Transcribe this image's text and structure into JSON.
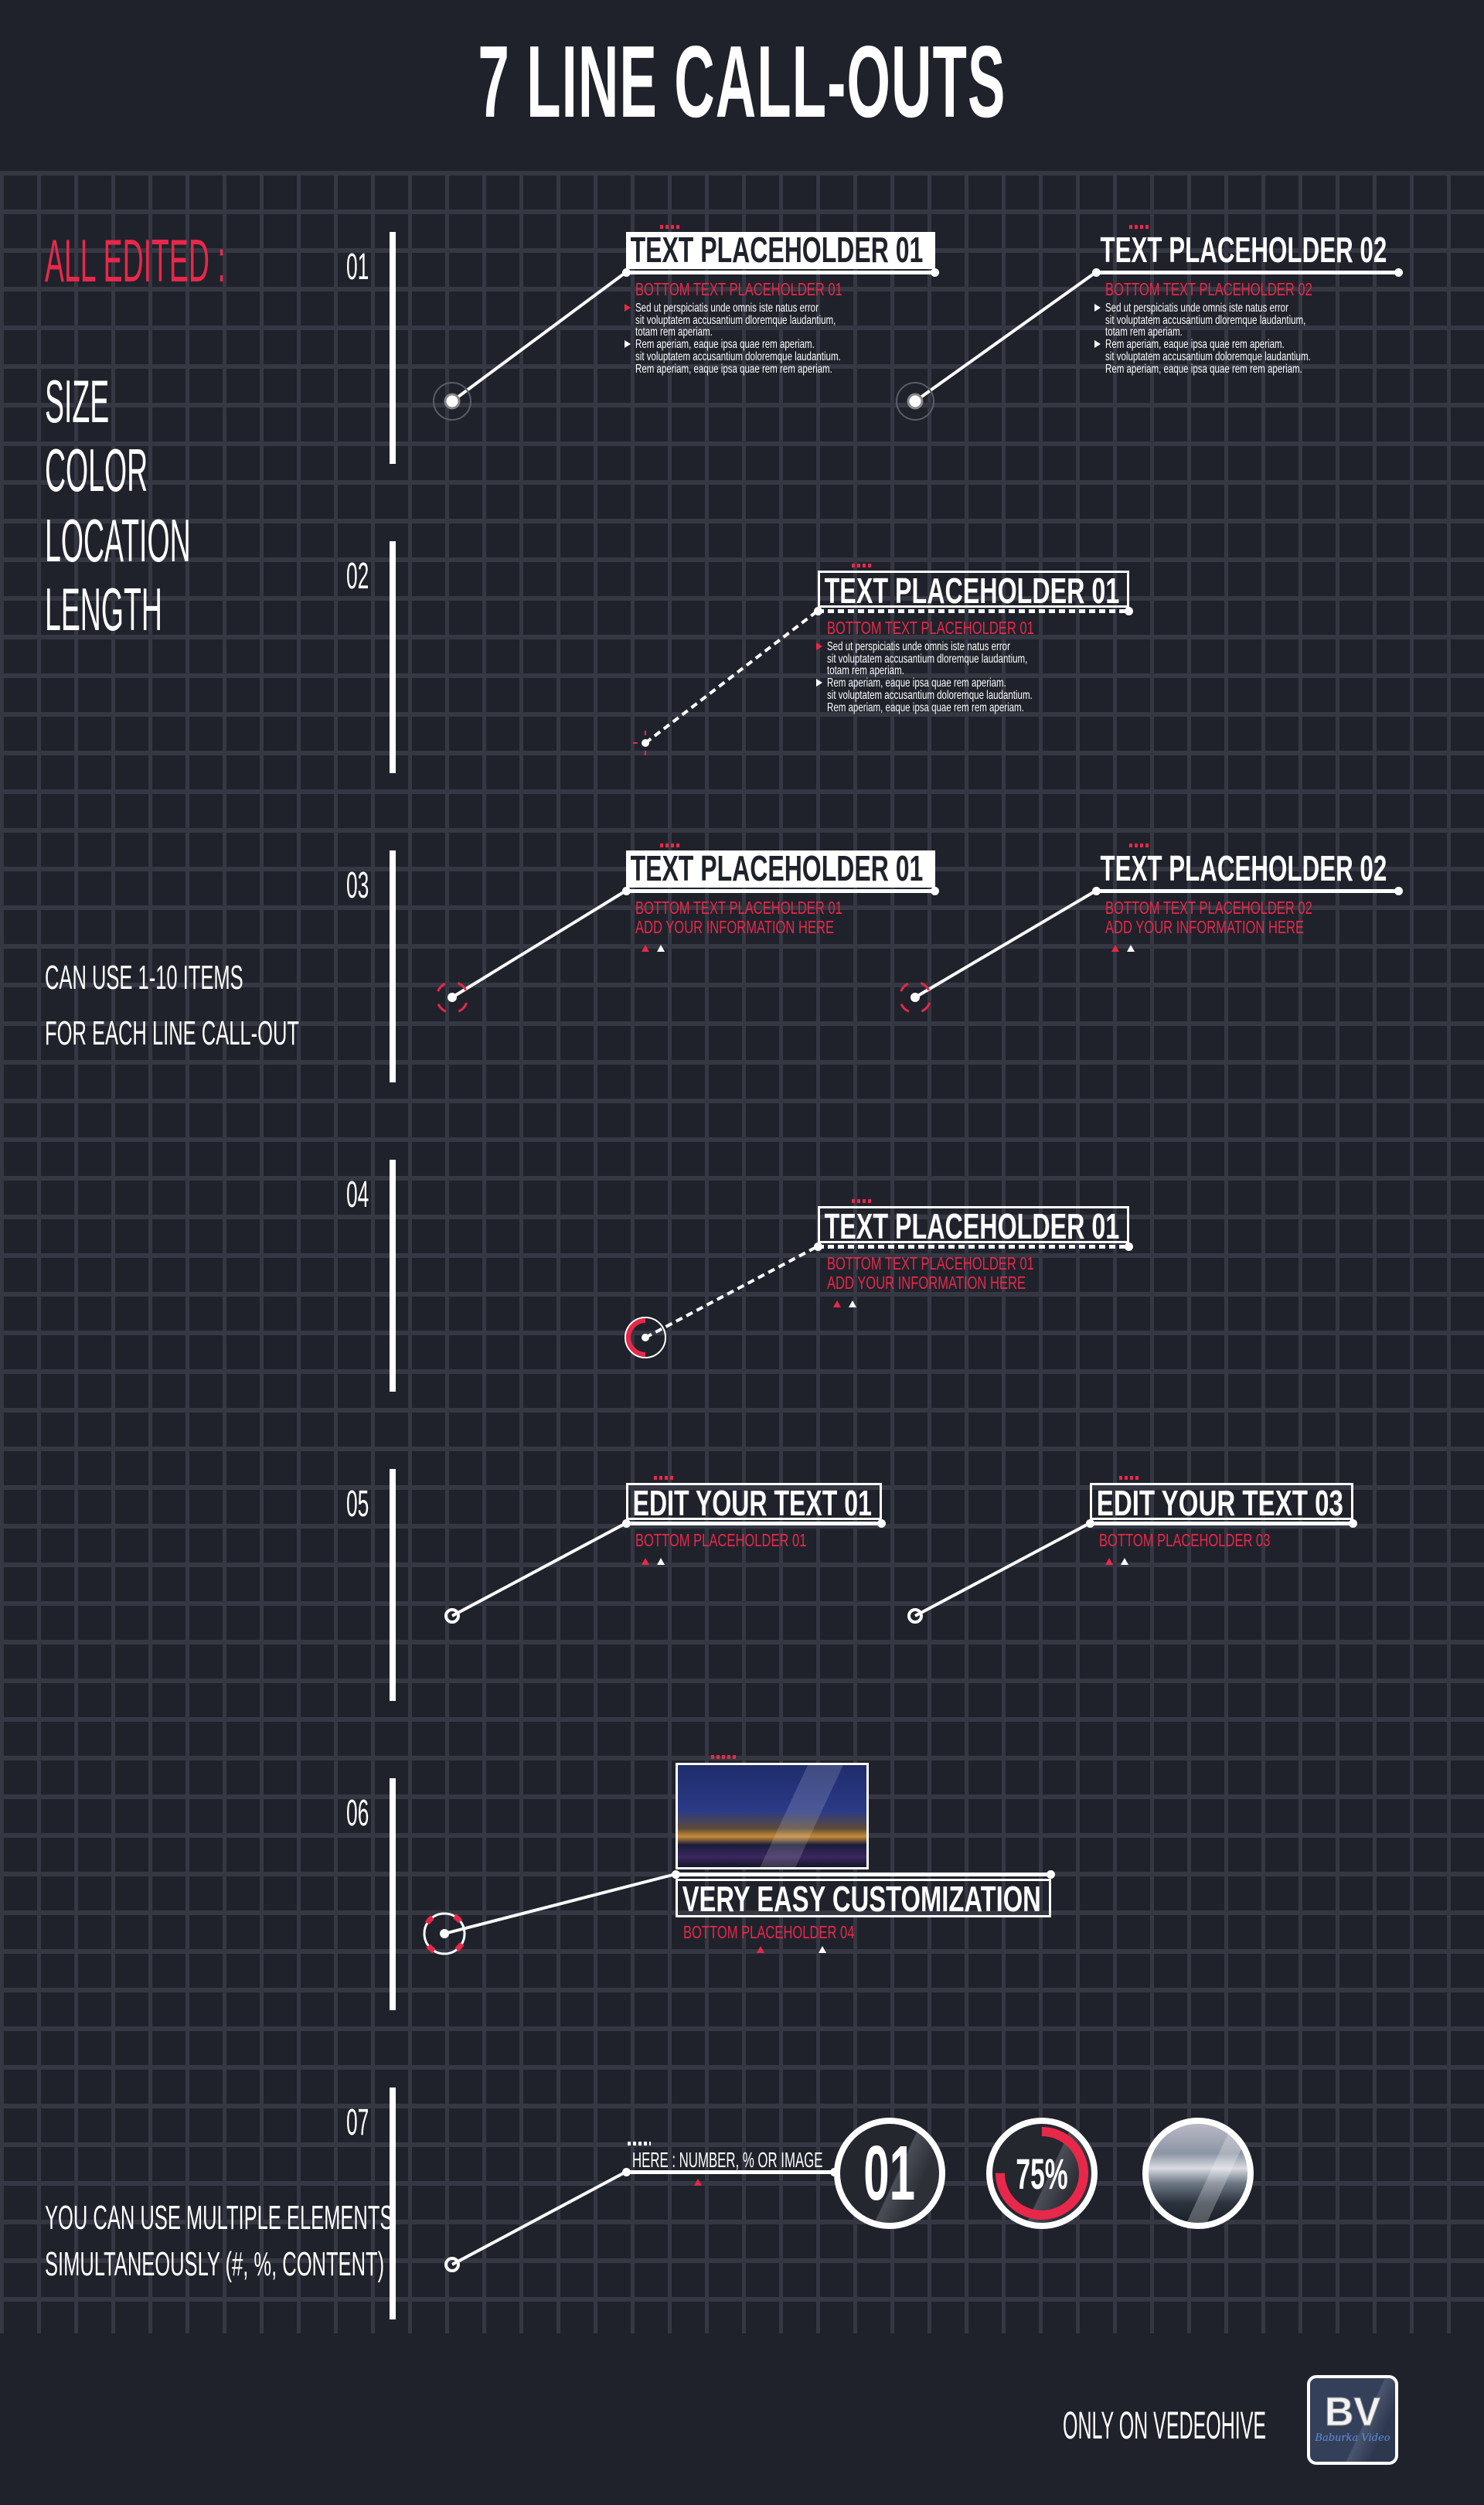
{
  "title": "7 LINE CALL-OUTS",
  "features": {
    "heading": "ALL EDITED :",
    "items": [
      "SIZE",
      "COLOR",
      "LOCATION",
      "LENGTH"
    ]
  },
  "note_items": [
    "CAN USE 1-10 ITEMS",
    "FOR EACH LINE CALL-OUT"
  ],
  "note_elements": [
    "YOU CAN USE MULTIPLE ELEMENTS",
    "SIMULTANEOUSLY (#, %, CONTENT)"
  ],
  "sections": [
    {
      "number": "01",
      "callouts": [
        {
          "heading": "TEXT PLACEHOLDER 01",
          "subtitle": [
            "BOTTOM TEXT PLACEHOLDER 01"
          ],
          "body": [
            "Sed ut perspiciatis unde omnis iste natus error",
            "sit voluptatem accusantium dloremque laudantium,",
            "totam rem aperiam.",
            "Rem aperiam, eaque ipsa quae rem aperiam.",
            "sit voluptatem accusantium doloremque laudantium.",
            "Rem aperiam, eaque ipsa quae rem  rem aperiam."
          ]
        },
        {
          "heading": "TEXT PLACEHOLDER 02",
          "subtitle": [
            "BOTTOM TEXT PLACEHOLDER 02"
          ],
          "body": [
            "Sed ut perspiciatis unde omnis iste natus error",
            "sit voluptatem accusantium dloremque laudantium,",
            "totam rem aperiam.",
            "Rem aperiam, eaque ipsa quae rem aperiam.",
            "sit voluptatem accusantium doloremque laudantium.",
            "Rem aperiam, eaque ipsa quae rem  rem aperiam."
          ]
        }
      ]
    },
    {
      "number": "02",
      "callouts": [
        {
          "heading": "TEXT PLACEHOLDER 01",
          "subtitle": [
            "BOTTOM TEXT PLACEHOLDER 01"
          ],
          "body": [
            "Sed ut perspiciatis unde omnis iste natus error",
            "sit voluptatem accusantium dloremque laudantium,",
            "totam rem aperiam.",
            "Rem aperiam, eaque ipsa quae rem aperiam.",
            "sit voluptatem accusantium doloremque laudantium.",
            "Rem aperiam, eaque ipsa quae rem  rem aperiam."
          ]
        }
      ]
    },
    {
      "number": "03",
      "callouts": [
        {
          "heading": "TEXT PLACEHOLDER 01",
          "subtitle": [
            "BOTTOM TEXT PLACEHOLDER 01",
            "ADD YOUR INFORMATION HERE"
          ],
          "body": []
        },
        {
          "heading": "TEXT PLACEHOLDER 02",
          "subtitle": [
            "BOTTOM TEXT PLACEHOLDER 02",
            "ADD YOUR INFORMATION HERE"
          ],
          "body": []
        }
      ]
    },
    {
      "number": "04",
      "callouts": [
        {
          "heading": "TEXT PLACEHOLDER 01",
          "subtitle": [
            "BOTTOM TEXT PLACEHOLDER 01",
            "ADD YOUR INFORMATION HERE"
          ],
          "body": []
        }
      ]
    },
    {
      "number": "05",
      "callouts": [
        {
          "heading": "EDIT YOUR TEXT 01",
          "subtitle": [
            "BOTTOM PLACEHOLDER 01"
          ],
          "body": []
        },
        {
          "heading": "EDIT YOUR TEXT 03",
          "subtitle": [
            "BOTTOM PLACEHOLDER 03"
          ],
          "body": []
        }
      ]
    },
    {
      "number": "06",
      "callouts": [
        {
          "heading": "VERY EASY CUSTOMIZATION",
          "subtitle": [
            "BOTTOM PLACEHOLDER 04"
          ],
          "body": [],
          "image": "city-night-photo"
        }
      ]
    },
    {
      "number": "07",
      "callouts": [
        {
          "heading": "HERE : NUMBER, % OR IMAGE",
          "subtitle": [],
          "body": []
        }
      ]
    }
  ],
  "badges": {
    "number": "01",
    "percent_label": "75%",
    "percent": 75,
    "image": "mountain-photo"
  },
  "footer": {
    "text": "ONLY ON VEDEOHIVE",
    "logo_letters": "BV",
    "logo_caption": "Baburka Video"
  },
  "colors": {
    "background": "#20222b",
    "grid": "#353843",
    "accent": "#e8284a",
    "text": "#ffffff"
  }
}
